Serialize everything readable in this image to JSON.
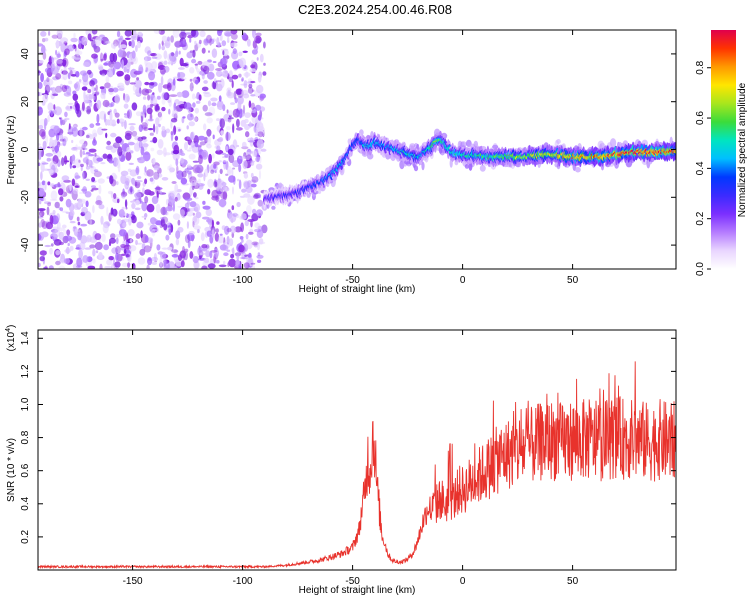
{
  "title": "C2E3.2024.254.00.46.R08",
  "colors": {
    "noise": "#8a2be2",
    "snr_line": "#e8322c",
    "colormap": [
      "#ffffff",
      "#e9d5ff",
      "#b57cff",
      "#7b2fff",
      "#3b2bff",
      "#0038ff",
      "#00bfff",
      "#00e5c0",
      "#3bdc3b",
      "#a8e61d",
      "#ffe600",
      "#ff9900",
      "#ff3300",
      "#e0004d"
    ]
  },
  "chart_data": [
    {
      "type": "heatmap",
      "title": "C2E3.2024.254.00.46.R08",
      "xlabel": "Height of straight line (km)",
      "ylabel": "Frequency (Hz)",
      "xlim": [
        -193,
        97
      ],
      "ylim": [
        -50,
        50
      ],
      "xticks": [
        -150,
        -100,
        -50,
        0,
        50
      ],
      "xtick_labels": [
        "-150",
        "-100",
        "-50",
        "0",
        "50"
      ],
      "yticks": [
        -40,
        -20,
        0,
        20,
        40
      ],
      "ytick_labels": [
        "-40",
        "-20",
        "0",
        "20",
        "40"
      ],
      "colorbar": {
        "label": "Normalized spectral amplitude",
        "range": [
          0,
          0.95
        ],
        "ticks": [
          0.0,
          0.2,
          0.4,
          0.6,
          0.8
        ],
        "tick_labels": [
          "0.0",
          "0.2",
          "0.4",
          "0.6",
          "0.8"
        ]
      },
      "noise_region_x": [
        -193,
        -90
      ],
      "ridge": {
        "x": [
          -90,
          -85,
          -80,
          -75,
          -70,
          -65,
          -60,
          -55,
          -52,
          -50,
          -47,
          -45,
          -42,
          -40,
          -35,
          -30,
          -25,
          -20,
          -15,
          -12,
          -10,
          -8,
          -5,
          0,
          10,
          20,
          30,
          40,
          50,
          60,
          70,
          80,
          90,
          97
        ],
        "freq": [
          -21,
          -20,
          -19,
          -18,
          -16,
          -14,
          -11,
          -6,
          -2,
          2,
          4,
          2,
          1,
          3,
          1,
          0,
          -2,
          -3,
          1,
          3,
          4,
          2,
          -1,
          -2,
          -3,
          -3,
          -3,
          -2,
          -3,
          -3,
          -2,
          -1,
          -1,
          -1
        ],
        "amplitude": [
          0.25,
          0.28,
          0.3,
          0.3,
          0.32,
          0.35,
          0.4,
          0.45,
          0.35,
          0.4,
          0.38,
          0.45,
          0.5,
          0.45,
          0.4,
          0.45,
          0.5,
          0.45,
          0.5,
          0.6,
          0.55,
          0.5,
          0.5,
          0.5,
          0.55,
          0.6,
          0.65,
          0.7,
          0.75,
          0.8,
          0.85,
          0.9,
          0.9,
          0.85
        ]
      }
    },
    {
      "type": "line",
      "xlabel": "Height of straight line (km)",
      "ylabel": "SNR (10 * v/v)",
      "y_multiplier": "(x10",
      "y_multiplier_exp": "4",
      "y_multiplier_close": ")",
      "xlim": [
        -193,
        97
      ],
      "ylim": [
        0,
        1.45
      ],
      "xticks": [
        -150,
        -100,
        -50,
        0,
        50
      ],
      "xtick_labels": [
        "-150",
        "-100",
        "-50",
        "0",
        "50"
      ],
      "yticks": [
        0.2,
        0.4,
        0.6,
        0.8,
        1.0,
        1.2,
        1.4
      ],
      "ytick_labels": [
        "0.2",
        "0.4",
        "0.6",
        "0.8",
        "1.0",
        "1.2",
        "1.4"
      ],
      "series": [
        {
          "x": [
            -193,
            -180,
            -160,
            -140,
            -120,
            -100,
            -90,
            -85,
            -80,
            -75,
            -70,
            -65,
            -60,
            -55,
            -50,
            -47,
            -45,
            -43,
            -42,
            -41,
            -40,
            -39,
            -38,
            -37,
            -36,
            -35,
            -34,
            -33,
            -32,
            -30,
            -28,
            -26,
            -24,
            -22,
            -20,
            -18,
            -16,
            -14,
            -12,
            -10,
            -8,
            -6,
            -4,
            -2,
            0,
            5,
            10,
            15,
            20,
            25,
            30,
            35,
            40,
            45,
            50,
            55,
            60,
            65,
            70,
            75,
            80,
            85,
            90,
            95,
            97
          ],
          "y": [
            0.02,
            0.02,
            0.02,
            0.02,
            0.02,
            0.02,
            0.02,
            0.025,
            0.03,
            0.04,
            0.05,
            0.06,
            0.08,
            0.1,
            0.14,
            0.25,
            0.45,
            0.8,
            0.7,
            0.95,
            0.9,
            0.6,
            0.45,
            0.3,
            0.2,
            0.15,
            0.1,
            0.08,
            0.06,
            0.05,
            0.05,
            0.06,
            0.08,
            0.12,
            0.2,
            0.3,
            0.38,
            0.42,
            0.45,
            0.5,
            0.45,
            0.5,
            0.48,
            0.55,
            0.55,
            0.62,
            0.68,
            0.75,
            0.8,
            0.82,
            0.85,
            0.88,
            0.9,
            0.88,
            0.9,
            0.9,
            0.88,
            0.9,
            0.92,
            0.9,
            0.9,
            0.88,
            0.9,
            0.88,
            0.9
          ]
        }
      ]
    }
  ]
}
